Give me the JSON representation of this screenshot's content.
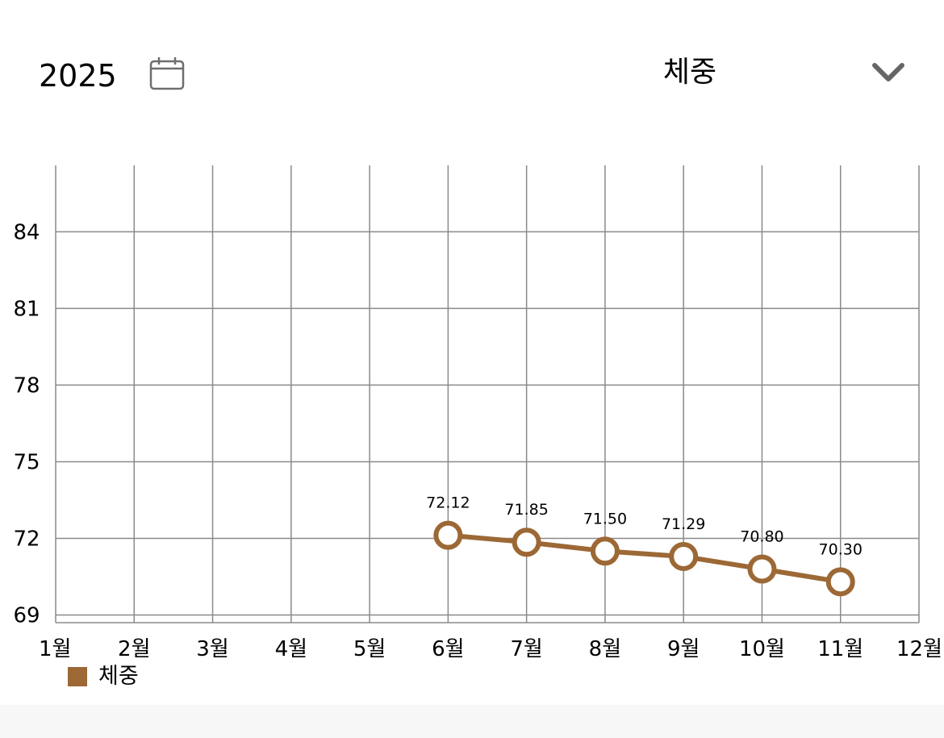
{
  "header": {
    "year": "2025",
    "calendar_icon": "calendar-icon",
    "metric_label": "체중",
    "dropdown_icon": "chevron-down-icon"
  },
  "colors": {
    "series": "#9c6835",
    "grid": "#8a8a8a",
    "footer": "#f7f7f7"
  },
  "chart_data": {
    "type": "line",
    "categories": [
      "1월",
      "2월",
      "3월",
      "4월",
      "5월",
      "6월",
      "7월",
      "8월",
      "9월",
      "10월",
      "11월",
      "12월"
    ],
    "yticks": [
      69,
      72,
      75,
      78,
      81,
      84
    ],
    "ylim": [
      68.7,
      86.6
    ],
    "grid": true,
    "legend_position": "bottom-left",
    "series": [
      {
        "name": "체중",
        "points": [
          {
            "x": "6월",
            "y": 72.12,
            "label": "72.12"
          },
          {
            "x": "7월",
            "y": 71.85,
            "label": "71.85"
          },
          {
            "x": "8월",
            "y": 71.5,
            "label": "71.50"
          },
          {
            "x": "9월",
            "y": 71.29,
            "label": "71.29"
          },
          {
            "x": "10월",
            "y": 70.8,
            "label": "70.80"
          },
          {
            "x": "11월",
            "y": 70.3,
            "label": "70.30"
          }
        ]
      }
    ]
  }
}
